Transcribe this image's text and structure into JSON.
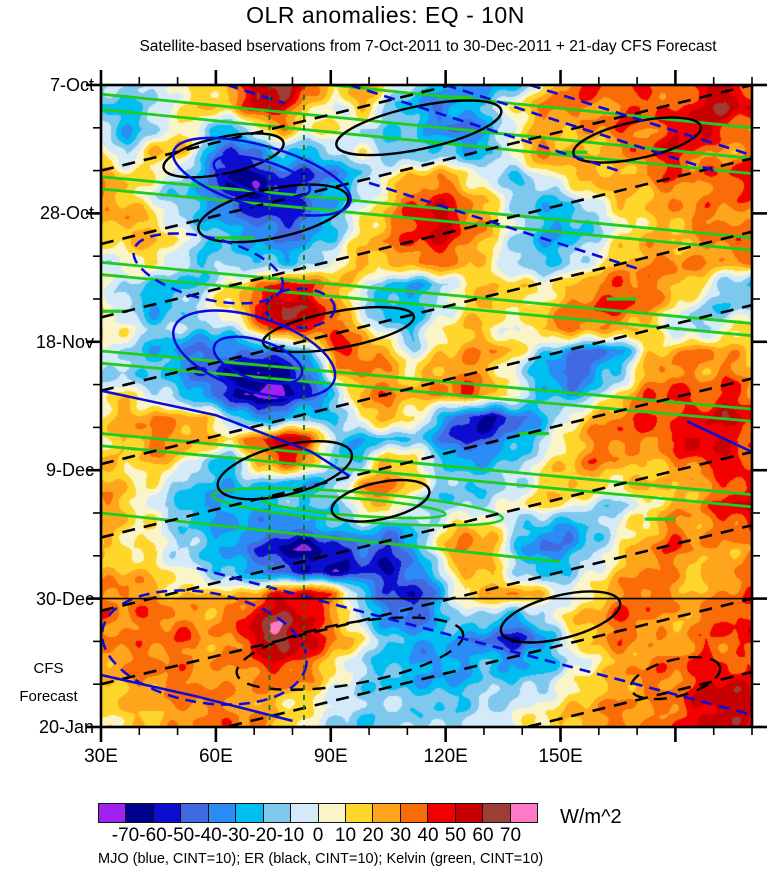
{
  "title": "OLR anomalies: EQ - 10N",
  "subtitle": "Satellite-based bservations from 7-Oct-2011 to 30-Dec-2011 + 21-day CFS Forecast",
  "caption": "MJO (blue, CINT=10); ER (black, CINT=10); Kelvin (green, CINT=10)",
  "y_axis": {
    "tick_labels": [
      "7-Oct",
      "28-Oct",
      "18-Nov",
      "9-Dec",
      "30-Dec",
      "20-Jan"
    ],
    "forecast_label_line1": "CFS",
    "forecast_label_line2": "Forecast"
  },
  "x_axis": {
    "tick_labels": [
      "30E",
      "60E",
      "90E",
      "120E",
      "150E"
    ]
  },
  "colorbar": {
    "unit_label": "W/m^2",
    "tick_labels": [
      "-70",
      "-60",
      "-50",
      "-40",
      "-30",
      "-20",
      "-10",
      "0",
      "10",
      "20",
      "30",
      "40",
      "50",
      "60",
      "70"
    ],
    "colors": [
      "#A021F0",
      "#00008F",
      "#0D0DCF",
      "#4169E1",
      "#2A8CF4",
      "#00BFF0",
      "#7EC8EE",
      "#D4EAF8",
      "#FAF5C9",
      "#FFD62B",
      "#FFA51C",
      "#FA6C08",
      "#F30000",
      "#C90000",
      "#9E3C36",
      "#FF79C4"
    ]
  },
  "chart_data": {
    "type": "heatmap",
    "subtype": "hovmoller-filled-contour",
    "title": "OLR anomalies: EQ - 10N",
    "x_domain_deg_east": [
      30,
      200
    ],
    "x_major_ticks_deg": [
      30,
      60,
      90,
      120,
      150,
      180
    ],
    "x_labeled_ticks_deg": [
      30,
      60,
      90,
      120,
      150
    ],
    "x_minor_step_deg": 10,
    "y_domain_days": [
      0,
      105
    ],
    "y_start_date": "7-Oct-2011",
    "y_major_tick_days": [
      0,
      21,
      42,
      63,
      84,
      105
    ],
    "y_minor_step_days": 7,
    "forecast_boundary_day": 84,
    "levels_wm2": [
      -70,
      -60,
      -50,
      -40,
      -30,
      -20,
      -10,
      0,
      10,
      20,
      30,
      40,
      50,
      60,
      70
    ],
    "grid_cols_deg": [
      33,
      40,
      46,
      53,
      59,
      66,
      72,
      79,
      85,
      92,
      98,
      105,
      111,
      118,
      125,
      131,
      138,
      144,
      151,
      157,
      164,
      170,
      177,
      183,
      190,
      196
    ],
    "grid_rows_day_step": 3.5,
    "grid_values_wm2": [
      [
        -15,
        -10,
        -15,
        5,
        15,
        25,
        65,
        70,
        45,
        10,
        30,
        5,
        -15,
        -25,
        -35,
        -30,
        -20,
        10,
        35,
        45,
        30,
        40,
        25,
        45,
        55,
        35
      ],
      [
        -20,
        -25,
        -10,
        10,
        20,
        15,
        55,
        45,
        15,
        -5,
        25,
        -10,
        -30,
        -40,
        -30,
        -15,
        15,
        30,
        40,
        25,
        35,
        45,
        35,
        50,
        60,
        45
      ],
      [
        -10,
        -30,
        -15,
        15,
        -10,
        -30,
        5,
        25,
        5,
        15,
        -10,
        -20,
        -15,
        -35,
        -45,
        -25,
        5,
        25,
        15,
        30,
        40,
        30,
        45,
        55,
        40,
        30
      ],
      [
        5,
        -15,
        20,
        25,
        -20,
        -55,
        -35,
        -15,
        -25,
        -10,
        5,
        -15,
        -25,
        -15,
        -30,
        -20,
        15,
        35,
        25,
        15,
        25,
        40,
        50,
        35,
        25,
        35
      ],
      [
        25,
        15,
        10,
        -10,
        -35,
        -70,
        -60,
        -45,
        -55,
        -35,
        -20,
        5,
        15,
        25,
        10,
        -10,
        -20,
        5,
        20,
        30,
        15,
        30,
        40,
        30,
        40,
        50
      ],
      [
        30,
        20,
        -5,
        -20,
        -30,
        -55,
        -65,
        -60,
        -40,
        -25,
        -10,
        15,
        35,
        45,
        30,
        10,
        -15,
        -25,
        -10,
        10,
        25,
        20,
        30,
        25,
        35,
        40
      ],
      [
        20,
        30,
        15,
        -10,
        -25,
        -35,
        -45,
        -55,
        -45,
        -20,
        5,
        25,
        45,
        55,
        40,
        20,
        -5,
        -25,
        -30,
        -15,
        5,
        15,
        25,
        35,
        30,
        25
      ],
      [
        10,
        15,
        25,
        5,
        -15,
        -25,
        -30,
        -40,
        -30,
        -15,
        15,
        30,
        40,
        50,
        35,
        15,
        -10,
        -30,
        -25,
        -10,
        10,
        25,
        15,
        25,
        40,
        35
      ],
      [
        -5,
        5,
        15,
        -10,
        -20,
        -15,
        -20,
        -25,
        -15,
        5,
        25,
        20,
        30,
        35,
        25,
        5,
        -15,
        -20,
        -15,
        5,
        20,
        30,
        35,
        30,
        25,
        30
      ],
      [
        5,
        -10,
        -20,
        -25,
        -15,
        10,
        25,
        45,
        35,
        25,
        5,
        -20,
        -30,
        -15,
        10,
        20,
        15,
        5,
        15,
        30,
        40,
        35,
        25,
        15,
        -15,
        -25
      ],
      [
        10,
        -15,
        -30,
        -20,
        5,
        15,
        45,
        65,
        55,
        30,
        -10,
        -30,
        -25,
        -10,
        15,
        25,
        10,
        15,
        30,
        40,
        45,
        30,
        15,
        -10,
        -20,
        -10
      ],
      [
        15,
        5,
        -15,
        -10,
        -20,
        -15,
        25,
        55,
        45,
        40,
        20,
        -15,
        -20,
        5,
        20,
        10,
        -5,
        25,
        40,
        30,
        25,
        15,
        -10,
        -20,
        5,
        15
      ],
      [
        5,
        -10,
        -25,
        -35,
        -45,
        -35,
        -45,
        -35,
        -20,
        45,
        35,
        25,
        -10,
        15,
        25,
        30,
        15,
        -15,
        -35,
        -45,
        -30,
        15,
        25,
        35,
        25,
        15
      ],
      [
        -10,
        -20,
        -15,
        -30,
        -50,
        -60,
        -70,
        -65,
        -45,
        15,
        35,
        25,
        15,
        25,
        35,
        20,
        -10,
        -30,
        -50,
        -35,
        -15,
        25,
        35,
        25,
        35,
        25
      ],
      [
        5,
        15,
        -10,
        -20,
        -35,
        -55,
        -75,
        -70,
        -50,
        -20,
        25,
        35,
        20,
        30,
        40,
        25,
        5,
        -20,
        -30,
        -15,
        15,
        35,
        45,
        35,
        45,
        35
      ],
      [
        15,
        25,
        30,
        25,
        15,
        -15,
        -40,
        -30,
        -15,
        -25,
        15,
        25,
        10,
        -25,
        -55,
        -65,
        -45,
        -25,
        5,
        25,
        35,
        45,
        35,
        45,
        55,
        45
      ],
      [
        10,
        20,
        35,
        30,
        25,
        15,
        35,
        55,
        45,
        -15,
        -30,
        -20,
        -15,
        -35,
        -60,
        -45,
        -30,
        -15,
        15,
        30,
        40,
        30,
        45,
        55,
        45,
        35
      ],
      [
        20,
        10,
        25,
        15,
        -15,
        -25,
        25,
        45,
        30,
        -25,
        -20,
        25,
        15,
        -15,
        -30,
        -25,
        -15,
        5,
        20,
        35,
        25,
        15,
        30,
        40,
        50,
        40
      ],
      [
        25,
        15,
        5,
        -15,
        -25,
        -30,
        -15,
        -25,
        -30,
        -15,
        25,
        35,
        15,
        -10,
        -20,
        -15,
        -10,
        15,
        25,
        15,
        10,
        25,
        15,
        25,
        35,
        45
      ],
      [
        30,
        20,
        -5,
        -20,
        -35,
        -25,
        -30,
        -20,
        -15,
        -20,
        15,
        25,
        -10,
        -20,
        -15,
        -10,
        5,
        15,
        10,
        -10,
        -15,
        10,
        20,
        30,
        45,
        55
      ],
      [
        25,
        15,
        10,
        -15,
        -25,
        -35,
        -30,
        -45,
        -35,
        -25,
        -15,
        -30,
        -20,
        5,
        25,
        15,
        -15,
        -30,
        -40,
        -20,
        5,
        15,
        35,
        25,
        35,
        40
      ],
      [
        15,
        10,
        5,
        -10,
        -20,
        -30,
        -45,
        -65,
        -70,
        -55,
        -45,
        -55,
        -35,
        15,
        35,
        25,
        -20,
        -45,
        -30,
        -15,
        10,
        30,
        40,
        30,
        25,
        30
      ],
      [
        20,
        25,
        15,
        5,
        -15,
        -25,
        -35,
        -45,
        -55,
        -65,
        -50,
        -60,
        -40,
        -15,
        25,
        15,
        -10,
        -25,
        -15,
        5,
        20,
        35,
        25,
        15,
        25,
        35
      ],
      [
        30,
        35,
        25,
        15,
        25,
        15,
        25,
        45,
        55,
        35,
        -20,
        -45,
        -60,
        -30,
        15,
        25,
        30,
        15,
        -10,
        15,
        30,
        40,
        30,
        20,
        30,
        40
      ],
      [
        35,
        30,
        40,
        30,
        25,
        35,
        55,
        65,
        45,
        25,
        -15,
        -35,
        -50,
        -25,
        -5,
        -15,
        -25,
        -10,
        15,
        25,
        40,
        35,
        25,
        30,
        45,
        35
      ],
      [
        30,
        35,
        30,
        40,
        30,
        25,
        60,
        70,
        55,
        35,
        10,
        -20,
        -30,
        -25,
        -35,
        -45,
        -60,
        -30,
        5,
        25,
        35,
        25,
        20,
        35,
        40,
        45
      ],
      [
        25,
        30,
        35,
        30,
        25,
        30,
        40,
        50,
        35,
        15,
        -10,
        -25,
        -30,
        -35,
        -30,
        -25,
        -35,
        -25,
        -10,
        10,
        25,
        30,
        35,
        40,
        35,
        30
      ],
      [
        20,
        25,
        30,
        35,
        30,
        25,
        30,
        35,
        25,
        5,
        -15,
        -20,
        -25,
        -30,
        -25,
        -15,
        -20,
        -15,
        5,
        15,
        25,
        35,
        30,
        45,
        55,
        45
      ],
      [
        15,
        20,
        25,
        30,
        35,
        30,
        25,
        15,
        10,
        -5,
        -15,
        -10,
        -15,
        -20,
        -15,
        -10,
        -5,
        5,
        15,
        25,
        30,
        25,
        35,
        50,
        60,
        50
      ],
      [
        10,
        15,
        20,
        25,
        30,
        35,
        30,
        20,
        5,
        -10,
        -20,
        -15,
        -10,
        -15,
        -10,
        -5,
        5,
        15,
        20,
        30,
        35,
        30,
        40,
        45,
        55,
        45
      ]
    ],
    "markers": {
      "vertical_dashed_deg": [
        74,
        83
      ],
      "vertical_dash_color": "#157815",
      "forecast_boundary_color": "#000000"
    },
    "overlays": {
      "kelvin": {
        "name": "Kelvin (green, CINT=10)",
        "color": "#1FCC1F",
        "lines_deg_day": [
          [
            30,
            1.5,
            200,
            12
          ],
          [
            30,
            4,
            200,
            14.5
          ],
          [
            90,
            0,
            200,
            7
          ],
          [
            30,
            15,
            200,
            25
          ],
          [
            30,
            17,
            200,
            27
          ],
          [
            30,
            29,
            200,
            39
          ],
          [
            30,
            31,
            200,
            41
          ],
          [
            30,
            43.5,
            200,
            53
          ],
          [
            30,
            45.5,
            200,
            55
          ],
          [
            30,
            57,
            200,
            67
          ],
          [
            30,
            59,
            200,
            69
          ],
          [
            30,
            70,
            150,
            78
          ]
        ],
        "ellipses_deg_day": [
          [
            97,
            69,
            38,
            2.4,
            4.5
          ],
          [
            96,
            69,
            24,
            1.4,
            4.5
          ]
        ],
        "dash_segments_deg_day": [
          [
            118,
            2,
            127,
            2
          ],
          [
            149,
            11,
            157,
            11
          ],
          [
            162,
            35,
            170,
            35
          ],
          [
            139,
            57,
            147,
            57
          ],
          [
            172,
            71,
            180,
            71
          ],
          [
            30,
            37,
            37,
            37
          ],
          [
            60,
            25,
            70,
            25
          ]
        ]
      },
      "er": {
        "name": "ER (black, CINT=10)",
        "color": "#000000",
        "dashed_lines_deg_day": [
          [
            30,
            14,
            200,
            -12
          ],
          [
            30,
            26,
            200,
            0
          ],
          [
            30,
            38,
            200,
            12
          ],
          [
            30,
            50,
            200,
            24
          ],
          [
            30,
            62,
            200,
            36
          ],
          [
            30,
            74,
            200,
            48
          ],
          [
            30,
            86,
            200,
            60
          ],
          [
            30,
            98,
            200,
            72
          ],
          [
            30,
            110,
            200,
            84
          ],
          [
            30,
            122,
            200,
            96
          ]
        ],
        "solid_ellipses_deg_day": [
          [
            62,
            11.5,
            16,
            3,
            -12
          ],
          [
            113,
            7,
            22,
            3.5,
            -12
          ],
          [
            170,
            9,
            17,
            3,
            -12
          ],
          [
            92,
            40,
            20,
            3,
            -10
          ],
          [
            78,
            63,
            18,
            4,
            -14
          ],
          [
            103,
            68,
            13,
            3,
            -12
          ],
          [
            150,
            87,
            16,
            3.5,
            -14
          ],
          [
            75,
            21,
            20,
            4,
            -12
          ]
        ],
        "dashed_ellipses_deg_day": [
          [
            95,
            93,
            30,
            5,
            -10
          ],
          [
            180,
            97,
            12,
            3,
            -14
          ]
        ]
      },
      "mjo": {
        "name": "MJO (blue, CINT=10)",
        "color": "#0A0ADC",
        "solid_ellipses_deg_day": [
          [
            72,
            15,
            24,
            5,
            16
          ],
          [
            72,
            15,
            13,
            2.6,
            16
          ],
          [
            70,
            44,
            22,
            6,
            18
          ],
          [
            71,
            45,
            12,
            3.2,
            18
          ]
        ],
        "dashed_ellipses_deg_day": [
          [
            58,
            30,
            20,
            5,
            14
          ],
          [
            82,
            36.5,
            9,
            3.2,
            0
          ],
          [
            57,
            92,
            27,
            9,
            10
          ]
        ],
        "solid_polylines_deg_day": [
          [
            [
              30,
              50
            ],
            [
              60,
              54
            ],
            [
              85,
              60
            ],
            [
              95,
              64
            ]
          ],
          [
            [
              30,
              96.5
            ],
            [
              55,
              100
            ],
            [
              80,
              104
            ]
          ],
          [
            [
              183,
              55
            ],
            [
              200,
              60
            ]
          ]
        ],
        "dashed_lines_deg_day": [
          [
            95,
            0,
            165,
            14
          ],
          [
            120,
            0,
            190,
            14
          ],
          [
            142,
            0,
            200,
            11.5
          ],
          [
            100,
            16,
            170,
            30
          ],
          [
            55,
            79,
            200,
            103
          ],
          [
            63,
            0,
            78,
            3
          ]
        ]
      }
    }
  }
}
